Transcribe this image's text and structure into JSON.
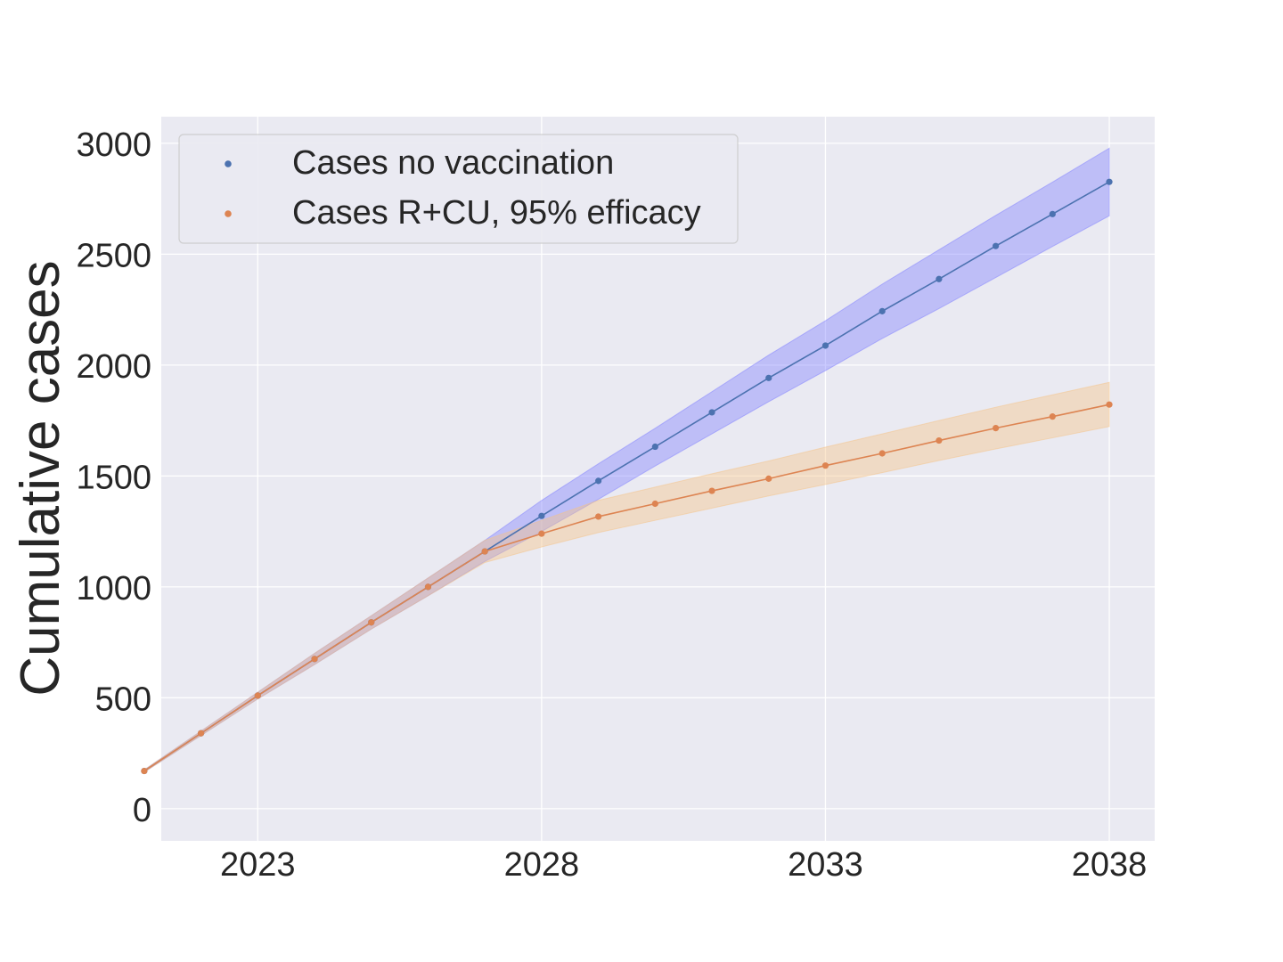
{
  "chart_data": {
    "type": "line",
    "title": "",
    "xlabel": "",
    "ylabel": "Cumulative cases",
    "xlim": [
      2021.3,
      2038.8
    ],
    "ylim": [
      -145,
      3120
    ],
    "xticks": [
      2023,
      2028,
      2033,
      2038
    ],
    "xtick_labels": [
      "2023",
      "2028",
      "2033",
      "2038"
    ],
    "yticks": [
      0,
      500,
      1000,
      1500,
      2000,
      2500,
      3000
    ],
    "ytick_labels": [
      "0",
      "500",
      "1000",
      "1500",
      "2000",
      "2500",
      "3000"
    ],
    "grid": true,
    "legend_position": "top-left",
    "x": [
      2021,
      2022,
      2023,
      2024,
      2025,
      2026,
      2027,
      2028,
      2029,
      2030,
      2031,
      2032,
      2033,
      2034,
      2035,
      2036,
      2037,
      2038
    ],
    "series": [
      {
        "name": "Cases no vaccination",
        "color": "#4c72b0",
        "band_color": "#8080ff",
        "values": [
          170,
          340,
          510,
          675,
          840,
          1000,
          1160,
          1320,
          1478,
          1632,
          1787,
          1942,
          2088,
          2243,
          2388,
          2537,
          2681,
          2826
        ],
        "lower": [
          165,
          330,
          495,
          650,
          810,
          960,
          1115,
          1250,
          1395,
          1545,
          1690,
          1835,
          1975,
          2120,
          2255,
          2395,
          2535,
          2673
        ],
        "upper": [
          175,
          350,
          525,
          700,
          870,
          1040,
          1210,
          1390,
          1555,
          1715,
          1880,
          2045,
          2200,
          2365,
          2520,
          2675,
          2825,
          2978
        ]
      },
      {
        "name": "Cases R+CU, 95% efficacy",
        "color": "#dd8452",
        "band_color": "#f5c488",
        "values": [
          170,
          340,
          510,
          675,
          840,
          1000,
          1160,
          1240,
          1317,
          1375,
          1433,
          1488,
          1547,
          1602,
          1660,
          1716,
          1768,
          1822
        ],
        "lower": [
          165,
          330,
          495,
          650,
          810,
          960,
          1110,
          1180,
          1245,
          1300,
          1355,
          1410,
          1462,
          1515,
          1570,
          1622,
          1672,
          1723
        ],
        "upper": [
          175,
          350,
          525,
          700,
          870,
          1040,
          1210,
          1300,
          1390,
          1450,
          1510,
          1568,
          1630,
          1690,
          1750,
          1810,
          1866,
          1922
        ]
      }
    ]
  }
}
